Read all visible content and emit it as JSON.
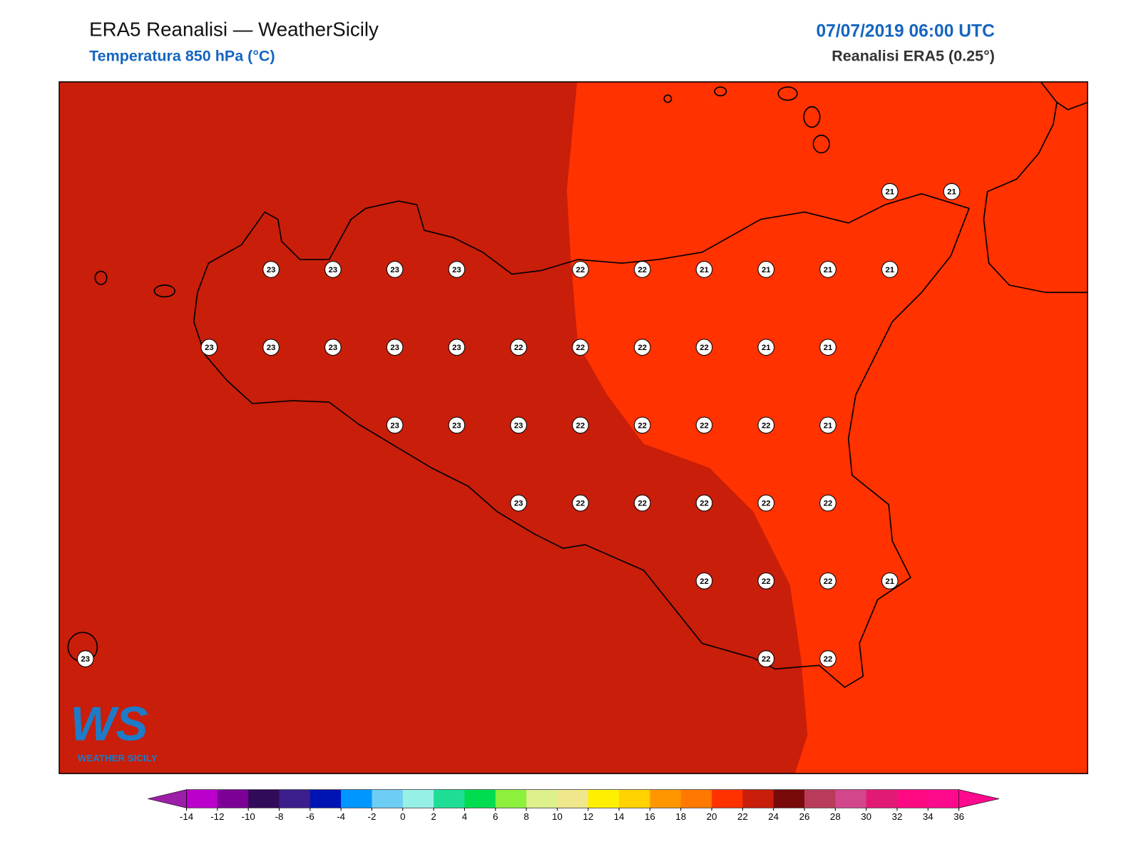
{
  "header": {
    "title": "ERA5 Reanalisi — WeatherSicily",
    "subtitle": "Temperatura 850 hPa (°C)",
    "datetime": "07/07/2019 06:00 UTC",
    "source": "Reanalisi ERA5 (0.25°)"
  },
  "logo": {
    "mark": "WS",
    "name": "WEATHER SICILY"
  },
  "station_values": [
    21,
    21,
    23,
    23,
    23,
    23,
    22,
    22,
    21,
    21,
    21,
    21,
    23,
    23,
    23,
    23,
    23,
    22,
    22,
    22,
    22,
    21,
    21,
    23,
    23,
    23,
    22,
    22,
    22,
    22,
    21,
    23,
    22,
    22,
    22,
    22,
    22,
    22,
    22,
    22,
    21,
    23,
    22,
    22
  ],
  "colorbar": {
    "ticks": [
      -14,
      -12,
      -10,
      -8,
      -6,
      -4,
      -2,
      0,
      2,
      4,
      6,
      8,
      10,
      12,
      14,
      16,
      18,
      20,
      22,
      24,
      26,
      28,
      30,
      32,
      34,
      36
    ],
    "under_color": "#9c1fa8",
    "over_color": "#ff0a8c",
    "colors": [
      "#bb00cc",
      "#7d0096",
      "#320a5a",
      "#3c1e8c",
      "#0014b4",
      "#0096ff",
      "#6ecdf5",
      "#96f0e6",
      "#1ede96",
      "#00dc50",
      "#8cf03c",
      "#dcf08c",
      "#f0e68c",
      "#fff000",
      "#ffd200",
      "#ff9600",
      "#ff7800",
      "#ff3200",
      "#c81e0a",
      "#780a0a",
      "#b83c5a",
      "#d2468c",
      "#e11a76",
      "#ff0a82",
      "#ff0a8c"
    ]
  }
}
